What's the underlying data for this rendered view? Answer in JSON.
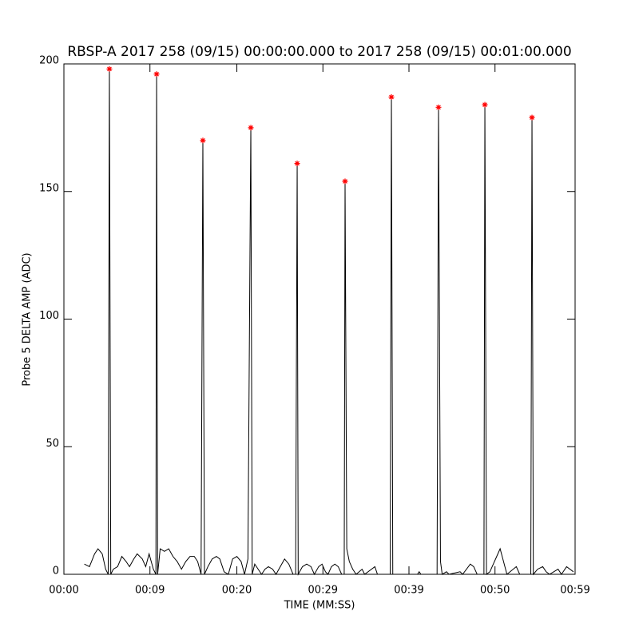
{
  "chart_data": {
    "type": "line",
    "title": "RBSP-A 2017 258 (09/15) 00:00:00.000 to 2017 258 (09/15) 00:01:00.000",
    "x_label": "TIME (MM:SS)",
    "y_label": "Probe 5 DELTA AMP (ADC)",
    "xlim": [
      0,
      60
    ],
    "ylim": [
      0,
      200
    ],
    "xticks": [
      {
        "value": 0,
        "label": "00:00"
      },
      {
        "value": 10.1,
        "label": "00:09"
      },
      {
        "value": 20.3,
        "label": "00:20"
      },
      {
        "value": 30.4,
        "label": "00:29"
      },
      {
        "value": 40.5,
        "label": "00:39"
      },
      {
        "value": 50.6,
        "label": "00:50"
      },
      {
        "value": 60,
        "label": "00:59"
      }
    ],
    "yticks": [
      0,
      50,
      100,
      150,
      200
    ],
    "series": [
      {
        "color": "#000000",
        "style": "line",
        "x": [
          2.4,
          3.0,
          3.6,
          4.0,
          4.5,
          4.9,
          5.2,
          5.34,
          5.5,
          5.8,
          6.3,
          6.8,
          7.3,
          7.7,
          8.2,
          8.6,
          9.2,
          9.6,
          10.0,
          10.5,
          10.8,
          10.88,
          11.0,
          11.3,
          11.8,
          12.3,
          12.8,
          13.3,
          13.8,
          14.3,
          14.8,
          15.3,
          15.7,
          16.1,
          16.31,
          16.5,
          16.9,
          17.4,
          17.9,
          18.3,
          18.8,
          19.3,
          19.8,
          20.3,
          20.8,
          21.2,
          21.6,
          21.94,
          22.1,
          22.4,
          22.8,
          23.2,
          23.6,
          24.0,
          24.5,
          24.9,
          25.4,
          25.9,
          26.4,
          26.9,
          27.2,
          27.38,
          27.5,
          28.0,
          28.5,
          29.0,
          29.4,
          29.9,
          30.3,
          30.7,
          31.0,
          31.4,
          31.8,
          32.2,
          32.6,
          32.9,
          33.0,
          33.2,
          33.5,
          33.9,
          34.3,
          35.0,
          35.3,
          36.5,
          36.8,
          38.3,
          38.44,
          38.6,
          40.0,
          41.5,
          41.7,
          41.9,
          43.8,
          43.97,
          44.2,
          44.4,
          44.9,
          45.2,
          46.5,
          46.8,
          47.7,
          48.1,
          48.5,
          49.3,
          49.41,
          49.6,
          50.0,
          50.4,
          50.8,
          51.2,
          51.6,
          52.0,
          53.1,
          53.5,
          54.8,
          54.94,
          55.1,
          55.6,
          56.2,
          56.6,
          57.0,
          58.0,
          58.4,
          59.0,
          59.8
        ],
        "values": [
          4,
          3,
          8,
          10,
          8,
          2,
          0,
          198,
          0,
          2,
          3,
          7,
          5,
          3,
          6,
          8,
          6,
          3,
          8,
          2,
          0,
          196,
          0,
          10,
          9,
          10,
          7,
          5,
          2,
          5,
          7,
          7,
          5,
          0,
          170,
          0,
          3,
          6,
          7,
          6,
          1,
          0,
          6,
          7,
          5,
          0,
          6,
          175,
          0,
          4,
          2,
          0,
          2,
          3,
          2,
          0,
          3,
          6,
          4,
          0,
          0,
          161,
          0,
          3,
          4,
          3,
          0,
          3,
          4,
          1,
          0,
          3,
          4,
          3,
          0,
          0,
          154,
          10,
          5,
          2,
          0,
          2,
          0,
          3,
          0,
          0,
          187,
          0,
          0,
          0,
          1,
          0,
          0,
          183,
          5,
          0,
          1,
          0,
          1,
          0,
          4,
          3,
          0,
          0,
          184,
          0,
          1,
          4,
          7,
          10,
          5,
          0,
          3,
          0,
          0,
          179,
          0,
          2,
          3,
          1,
          0,
          2,
          0,
          3,
          1
        ]
      },
      {
        "color": "#ff0000",
        "style": "markers",
        "x": [
          5.34,
          10.88,
          16.31,
          21.94,
          27.38,
          33.0,
          38.44,
          43.97,
          49.41,
          54.94
        ],
        "values": [
          198,
          196,
          170,
          175,
          161,
          154,
          187,
          183,
          184,
          179
        ]
      }
    ]
  }
}
